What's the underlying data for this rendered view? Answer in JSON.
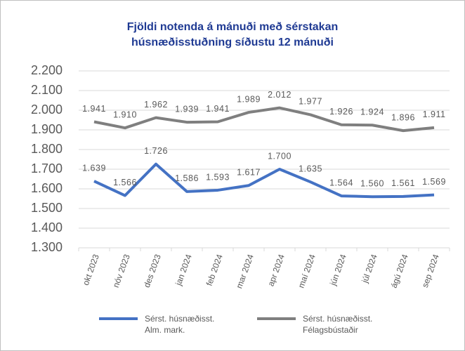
{
  "chart_data": {
    "type": "line",
    "title": [
      "Fjöldi notenda á mánuði  með sérstakan",
      "húsnæðisstuðning síðustu 12 mánuði"
    ],
    "categories": [
      "okt 2023",
      "nóv 2023",
      "des 2023",
      "jan 2024",
      "feb 2024",
      "mar 2024",
      "apr 2024",
      "maí 2024",
      "jún 2024",
      "júl 2024",
      "ágú 2024",
      "sep 2024"
    ],
    "series": [
      {
        "name": "Sérst. húsnæðisst. Alm. mark.",
        "color": "#4472c4",
        "values": [
          1639,
          1566,
          1726,
          1586,
          1593,
          1617,
          1700,
          1635,
          1564,
          1560,
          1561,
          1569
        ],
        "value_labels": [
          "1.639",
          "1.566",
          "1.726",
          "1.586",
          "1.593",
          "1.617",
          "1.700",
          "1.635",
          "1.564",
          "1.560",
          "1.561",
          "1.569"
        ]
      },
      {
        "name": "Sérst. húsnæðisst. Félagsbústaðir",
        "color": "#7f7f7f",
        "values": [
          1941,
          1910,
          1962,
          1939,
          1941,
          1989,
          2012,
          1977,
          1926,
          1924,
          1896,
          1911
        ],
        "value_labels": [
          "1.941",
          "1.910",
          "1.962",
          "1.939",
          "1.941",
          "1.989",
          "2.012",
          "1.977",
          "1.926",
          "1.924",
          "1.896",
          "1.911"
        ]
      }
    ],
    "ylim": [
      1300,
      2200
    ],
    "yticks": [
      {
        "value": 1300,
        "label": "1.300"
      },
      {
        "value": 1400,
        "label": "1.400"
      },
      {
        "value": 1500,
        "label": "1.500"
      },
      {
        "value": 1600,
        "label": "1.600"
      },
      {
        "value": 1700,
        "label": "1.700"
      },
      {
        "value": 1800,
        "label": "1.800"
      },
      {
        "value": 1900,
        "label": "1.900"
      },
      {
        "value": 2000,
        "label": "2.000"
      },
      {
        "value": 2100,
        "label": "2.100"
      },
      {
        "value": 2200,
        "label": "2.200"
      }
    ],
    "grid": true,
    "legend": "bottom"
  }
}
